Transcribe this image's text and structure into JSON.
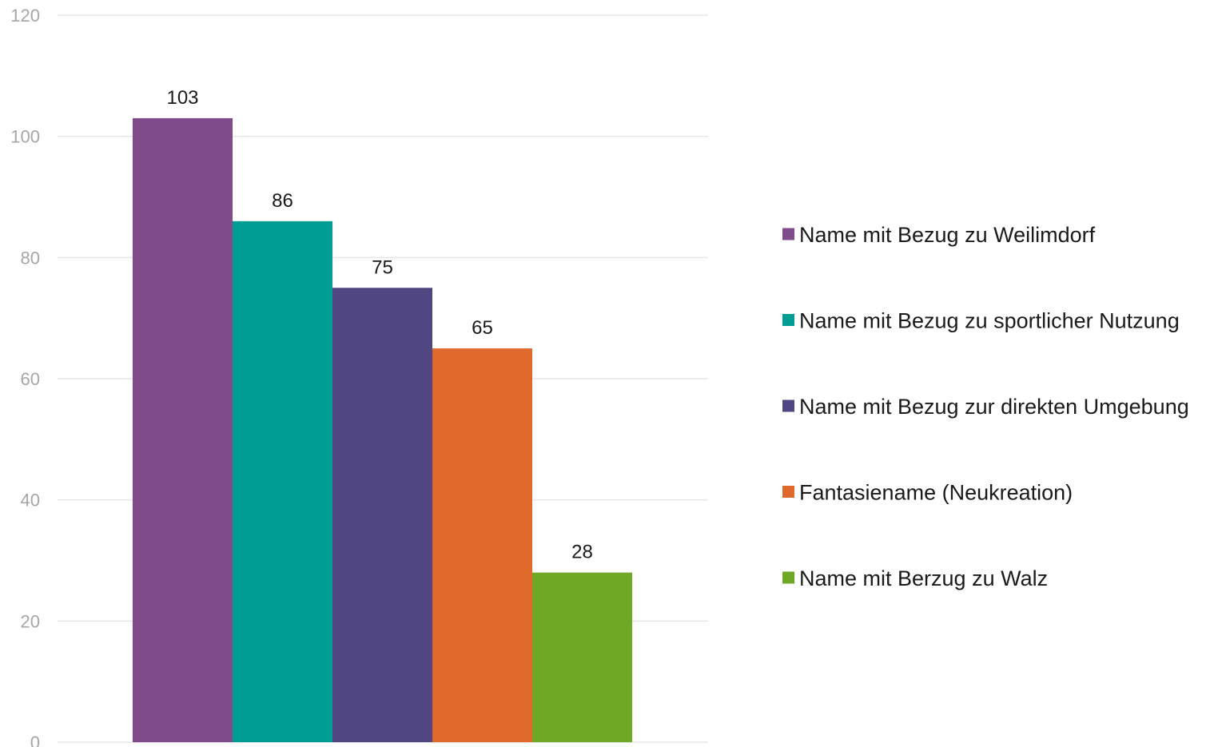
{
  "chart_data": {
    "type": "bar",
    "series": [
      {
        "name": "Name mit Bezug zu Weilimdorf",
        "value": 103,
        "color": "#7f4b8a"
      },
      {
        "name": "Name mit Bezug zu sportlicher Nutzung",
        "value": 86,
        "color": "#009d94"
      },
      {
        "name": "Name mit Bezug zur direkten Umgebung",
        "value": 75,
        "color": "#4f4682"
      },
      {
        "name": "Fantasiename (Neukreation)",
        "value": 65,
        "color": "#e06a2c"
      },
      {
        "name": "Name mit Berzug zu Walz",
        "value": 28,
        "color": "#6ea825"
      }
    ],
    "ylim": [
      0,
      120
    ],
    "yticks": [
      "0",
      "20",
      "40",
      "60",
      "80",
      "100",
      "120"
    ],
    "grid": true,
    "legend_position": "right",
    "gridline_color": "#e6e6e6",
    "tick_label_color": "#a6a6a6"
  }
}
